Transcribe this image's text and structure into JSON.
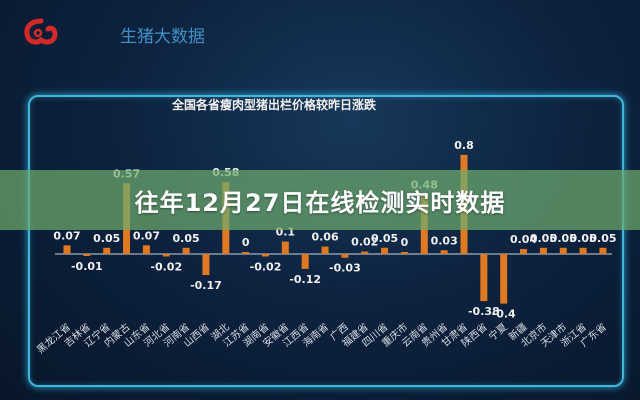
{
  "header": {
    "brand": "生猪大数据",
    "logo_icon": "red-swirl-logo"
  },
  "banner": {
    "text": "往年12月27日在线检测实时数据"
  },
  "colors": {
    "bar": "#e07a22",
    "panel_border": "#3fb6da",
    "banner": "#6eaa6e"
  },
  "chart_data": {
    "type": "bar",
    "title": "全国各省瘦肉型猪出栏价格较昨日涨跌",
    "categories": [
      "黑龙江省",
      "吉林省",
      "辽宁省",
      "内蒙古",
      "山东省",
      "河北省",
      "河南省",
      "山西省",
      "湖北",
      "江苏省",
      "湖南省",
      "安徽省",
      "江西省",
      "海南省",
      "广西",
      "福建省",
      "四川省",
      "重庆市",
      "云南省",
      "贵州省",
      "甘肃省",
      "陕西省",
      "宁夏",
      "新疆",
      "北京市",
      "天津市",
      "浙江省",
      "广东省"
    ],
    "values": [
      0.07,
      -0.01,
      0.05,
      0.57,
      0.07,
      -0.02,
      0.05,
      -0.17,
      0.58,
      0,
      -0.02,
      0.1,
      -0.12,
      0.06,
      -0.03,
      0.02,
      0.05,
      0,
      0.48,
      0.03,
      0.8,
      -0.38,
      -0.4,
      0.04,
      0.05,
      0.05,
      0.05,
      0.05
    ],
    "grid": false,
    "data_labels": true
  }
}
